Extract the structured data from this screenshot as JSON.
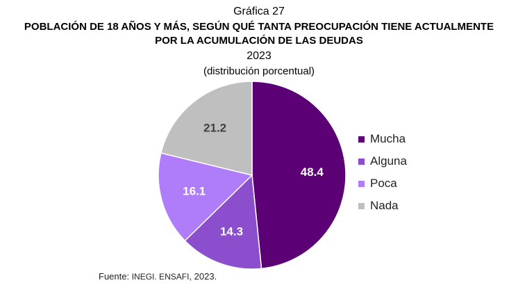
{
  "header": {
    "chart_label": "Gráfica 27",
    "title_line1": "POBLACIÓN DE 18 AÑOS Y MÁS, SEGÚN QUÉ TANTA PREOCUPACIÓN TIENE ACTUALMENTE",
    "title_line2": "POR LA ACUMULACIÓN DE LAS DEUDAS",
    "year": "2023",
    "unit": "(distribución porcentual)"
  },
  "chart_data": {
    "type": "pie",
    "categories": [
      "Mucha",
      "Alguna",
      "Poca",
      "Nada"
    ],
    "values": [
      48.4,
      14.3,
      16.1,
      21.2
    ],
    "value_labels": [
      "48.4",
      "14.3",
      "16.1",
      "21.2"
    ],
    "colors": [
      "#5c0076",
      "#8b4fce",
      "#b07dfa",
      "#bfbfbf"
    ],
    "label_colors": [
      "#ffffff",
      "#ffffff",
      "#ffffff",
      "#404040"
    ],
    "start_angle": "top",
    "direction": "clockwise",
    "legend_position": "right"
  },
  "legend": [
    {
      "label": "Mucha",
      "color": "#5c0076"
    },
    {
      "label": "Alguna",
      "color": "#8b4fce"
    },
    {
      "label": "Poca",
      "color": "#b07dfa"
    },
    {
      "label": "Nada",
      "color": "#bfbfbf"
    }
  ],
  "source": {
    "prefix": "Fuente:",
    "text": "INEGI. ENSAFI",
    "suffix": ", 2023."
  }
}
